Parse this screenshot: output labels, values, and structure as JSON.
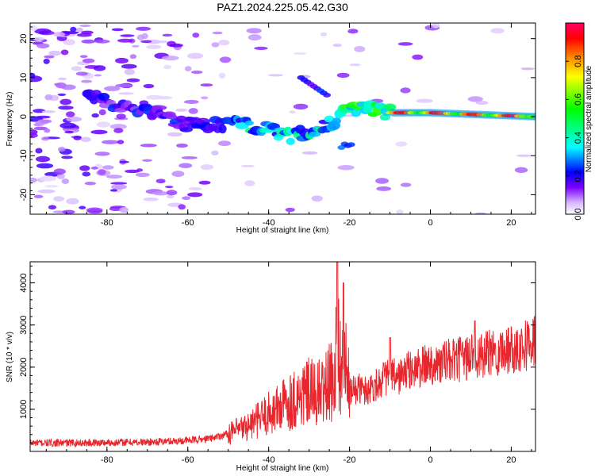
{
  "title": "PAZ1.2024.225.05.42.G30",
  "chart_data": [
    {
      "type": "heatmap",
      "xlabel": "Height of straight line (km)",
      "ylabel": "Frequency (Hz)",
      "xlim": [
        -99,
        26
      ],
      "ylim": [
        -25,
        24
      ],
      "xticks": [
        "-80",
        "-60",
        "-40",
        "-20",
        "0",
        "20"
      ],
      "yticks": [
        "20",
        "10",
        "0",
        "-10",
        "-20"
      ],
      "grid": false,
      "colorbar": {
        "label": "Normalized spectral amplitude",
        "range": [
          0,
          1
        ],
        "ticks": [
          "0.0",
          "0.2",
          "0.4",
          "0.6",
          "0.8"
        ],
        "colormap": [
          "#ffffff",
          "#d6b8ff",
          "#7b00ff",
          "#0000ff",
          "#00ffff",
          "#00ff00",
          "#ffff00",
          "#ff8800",
          "#ff0000",
          "#ff0066"
        ]
      },
      "ridge_frequency": [
        {
          "x": -80,
          "y": 4
        },
        {
          "x": -60,
          "y": -2
        },
        {
          "x": -45,
          "y": -2
        },
        {
          "x": -35,
          "y": -5
        },
        {
          "x": -28,
          "y": -4
        },
        {
          "x": -20,
          "y": 2
        },
        {
          "x": -15,
          "y": 2
        },
        {
          "x": -10,
          "y": 1
        },
        {
          "x": 0,
          "y": 1
        },
        {
          "x": 26,
          "y": 0
        }
      ]
    },
    {
      "type": "line",
      "xlabel": "Height of straight line (km)",
      "ylabel": "SNR (10 * v/v)",
      "xlim": [
        -99,
        26
      ],
      "ylim": [
        0,
        4500
      ],
      "xticks": [
        "-80",
        "-60",
        "-40",
        "-20",
        "0",
        "20"
      ],
      "yticks": [
        "1000",
        "2000",
        "3000",
        "4000"
      ],
      "grid": false,
      "color": "#e8262d",
      "series": [
        {
          "x": [
            -99,
            -90,
            -80,
            -70,
            -60,
            -55,
            -50,
            -45,
            -40,
            -38,
            -35,
            -32,
            -30,
            -28,
            -26,
            -24,
            -23,
            -22,
            -21,
            -20,
            -18,
            -16,
            -14,
            -12,
            -10,
            -8,
            -6,
            -4,
            -2,
            0,
            2,
            4,
            6,
            8,
            10,
            11,
            12,
            14,
            16,
            18,
            20,
            22,
            24,
            26
          ],
          "values": [
            200,
            200,
            210,
            220,
            260,
            300,
            420,
            600,
            900,
            1000,
            1200,
            1300,
            1400,
            1350,
            1500,
            1700,
            2600,
            1900,
            2000,
            1400,
            1500,
            1450,
            1550,
            1700,
            1800,
            1750,
            1900,
            1950,
            2000,
            2100,
            2050,
            2150,
            2150,
            2200,
            2250,
            2500,
            2200,
            2300,
            2350,
            2400,
            2450,
            2500,
            2550,
            2650
          ]
        }
      ]
    }
  ]
}
